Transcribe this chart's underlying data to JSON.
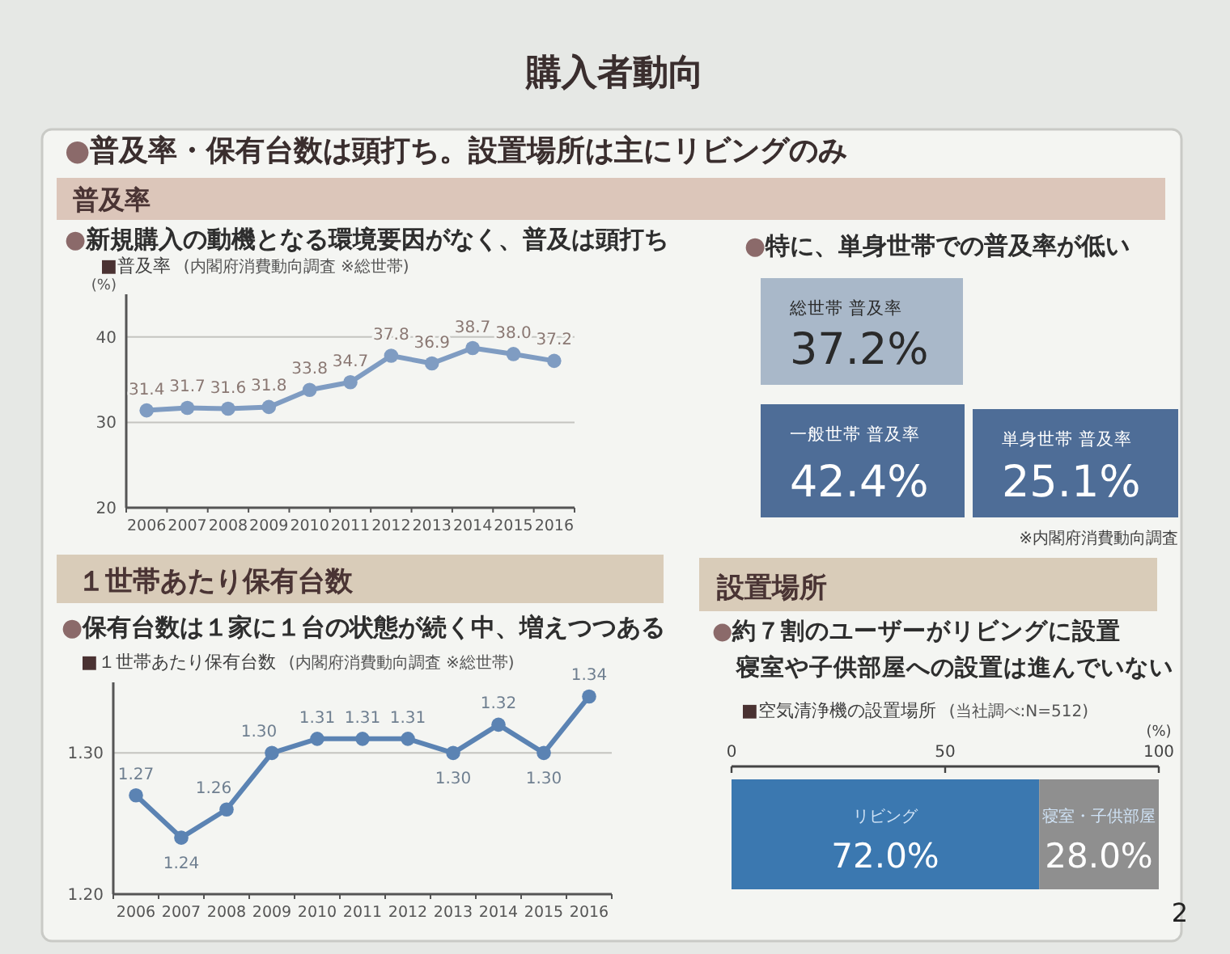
{
  "chart_data": [
    {
      "type": "line",
      "title": "普及率",
      "subtitle": "●新規購入の動機となる環境要因がなく、普及は頭打ち",
      "ylabel": "(%)",
      "annotations": [
        "購入者動向",
        "●普及率・保有台数は頭打ち。設置場所は主にリビングのみ",
        "■普及率",
        "(内閣府消費動向調査 ※総世帯)"
      ],
      "categories": [
        "2006",
        "2007",
        "2008",
        "2009",
        "2010",
        "2011",
        "2012",
        "2013",
        "2014",
        "2015",
        "2016"
      ],
      "values": [
        31.4,
        31.7,
        31.6,
        31.8,
        33.8,
        34.7,
        37.8,
        36.9,
        38.7,
        38.0,
        37.2
      ],
      "value_labels": [
        "31.4",
        "31.7",
        "31.6",
        "31.8",
        "33.8",
        "34.7",
        "37.8",
        "36.9",
        "38.7",
        "38.0",
        "37.2"
      ],
      "color": "#7f9cc2",
      "ylim": [
        20,
        45
      ],
      "yticks": [
        20,
        30,
        40
      ],
      "grid": "y",
      "marker": "circle"
    },
    {
      "type": "other",
      "title": "●特に、単身世帯での普及率が低い",
      "categories": [
        "総世帯 普及率",
        "一般世帯 普及率",
        "単身世帯 普及率"
      ],
      "value_labels": [
        "37.2%",
        "42.4%",
        "25.1%"
      ],
      "colors": [
        "#a9b8c9",
        "#4e6d97",
        "#4e6d97"
      ],
      "annotations": [
        "※内閣府消費動向調査"
      ]
    },
    {
      "type": "line",
      "title": "１世帯あたり保有台数",
      "subtitle": "●保有台数は１家に１台の状態が続く中、増えつつある",
      "annotations": [
        "■１世帯あたり保有台数",
        "(内閣府消費動向調査 ※総世帯)"
      ],
      "categories": [
        "2006",
        "2007",
        "2008",
        "2009",
        "2010",
        "2011",
        "2012",
        "2013",
        "2014",
        "2015",
        "2016"
      ],
      "values": [
        1.27,
        1.24,
        1.26,
        1.3,
        1.31,
        1.31,
        1.31,
        1.3,
        1.32,
        1.3,
        1.34
      ],
      "value_labels": [
        "1.27",
        "1.24",
        "1.26",
        "1.30",
        "1.31",
        "1.31",
        "1.31",
        "1.30",
        "1.32",
        "1.30",
        "1.34"
      ],
      "color": "#5b83b3",
      "ylim": [
        1.2,
        1.35
      ],
      "yticks": [
        {
          "value": 1.2,
          "label": "1.20"
        },
        {
          "value": 1.3,
          "label": "1.30"
        }
      ],
      "grid": "y",
      "marker": "circle"
    },
    {
      "type": "bar",
      "orientation": "horizontal",
      "stacked": true,
      "title": "設置場所",
      "subtitle": "●約７割のユーザーがリビングに設置",
      "xlabel": "(%)",
      "annotations": [
        "寝室や子供部屋への設置は進んでいない",
        "■空気清浄機の設置場所",
        "(当社調べ:N=512)",
        "2"
      ],
      "categories": [
        null
      ],
      "series": [
        {
          "name": "リビング",
          "color": "#3b78b0",
          "values": [
            72.0
          ],
          "value_labels": [
            "72.0%"
          ]
        },
        {
          "name": "寝室・子供部屋",
          "color": "#8f8f8f",
          "values": [
            28.0
          ],
          "value_labels": [
            "28.0%"
          ]
        }
      ],
      "xlim": [
        0,
        100
      ],
      "xticks": [
        0,
        50,
        100
      ]
    }
  ]
}
